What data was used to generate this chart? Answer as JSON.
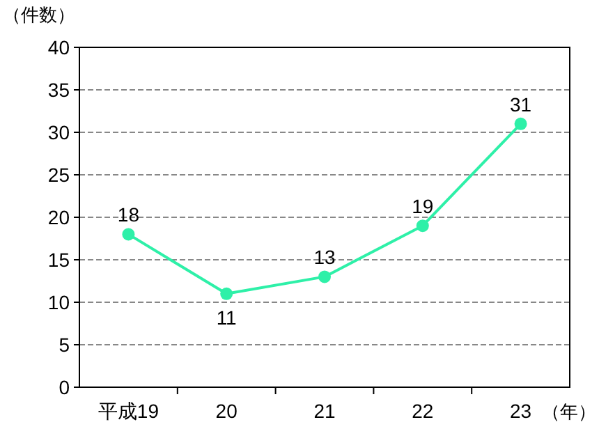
{
  "chart_data": {
    "type": "line",
    "ylabel": "（件数）",
    "xlabel": "（年）",
    "categories": [
      "平成19",
      "20",
      "21",
      "22",
      "23"
    ],
    "series": [
      {
        "color": "#2ef0a8",
        "values": [
          18,
          11,
          13,
          19,
          31
        ]
      }
    ],
    "ylim": [
      0,
      40
    ],
    "yticks": [
      0,
      5,
      10,
      15,
      20,
      25,
      30,
      35,
      40
    ],
    "grid": "y",
    "data_labels": true,
    "marker": "circle",
    "line_style": "solid"
  }
}
